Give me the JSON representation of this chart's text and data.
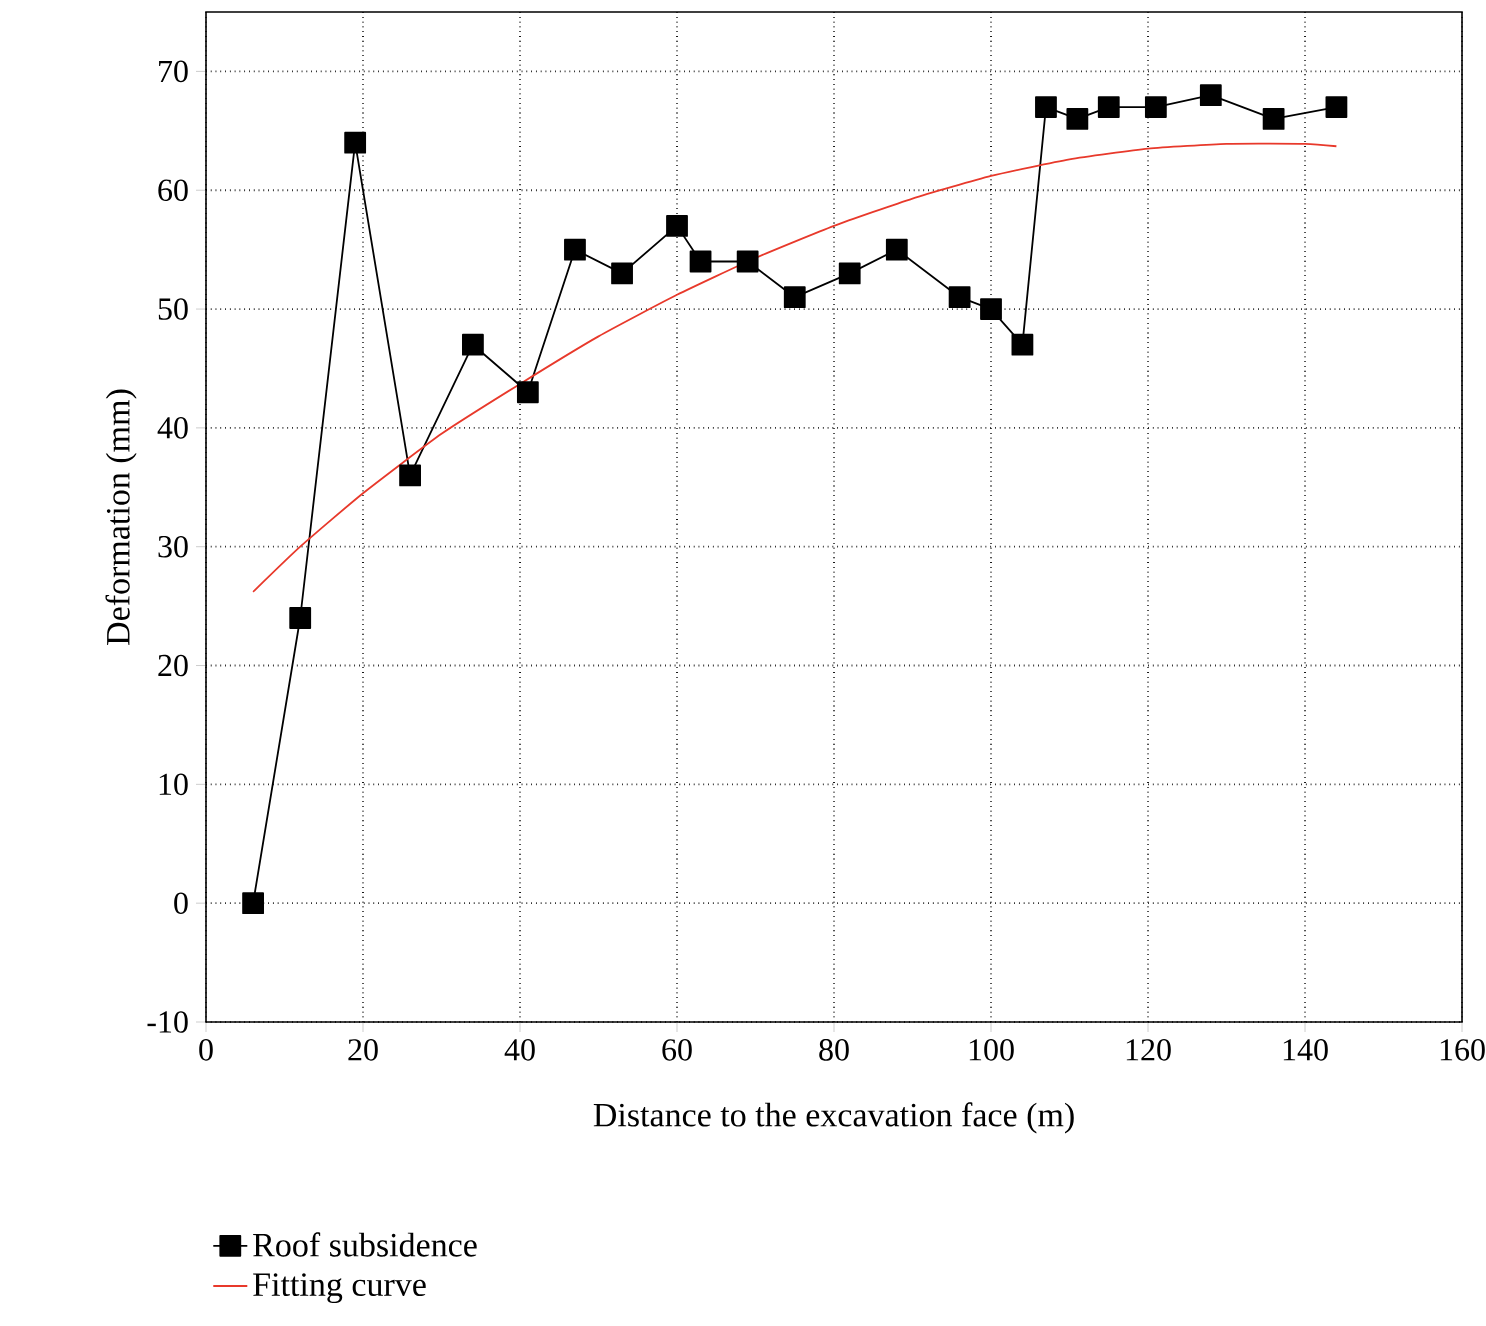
{
  "chart_data": {
    "type": "line",
    "xlabel": "Distance to the excavation face (m)",
    "ylabel": "Deformation (mm)",
    "xlim": [
      0,
      160
    ],
    "xticks": [
      0,
      20,
      40,
      60,
      80,
      100,
      120,
      140,
      160
    ],
    "ylim": [
      -10,
      75
    ],
    "yticks": [
      -10,
      0,
      10,
      20,
      30,
      40,
      50,
      60,
      70
    ],
    "grid": true,
    "legend": "bottom left",
    "series": [
      {
        "name": "Roof subsidence",
        "color": "#000000",
        "marker": "square",
        "x": [
          6,
          12,
          19,
          26,
          34,
          41,
          47,
          53,
          60,
          63,
          69,
          75,
          82,
          88,
          96,
          100,
          104,
          107,
          111,
          115,
          121,
          128,
          136,
          144
        ],
        "values": [
          0,
          24,
          64,
          36,
          47,
          43,
          55,
          53,
          57,
          54,
          54,
          51,
          53,
          55,
          51,
          50,
          47,
          67,
          66,
          67,
          67,
          68,
          66,
          67
        ]
      },
      {
        "name": "Fitting curve",
        "color": "#e8392b",
        "marker": "none",
        "x": [
          6,
          12,
          20,
          30,
          40,
          50,
          60,
          70,
          80,
          90,
          100,
          110,
          120,
          130,
          140,
          144
        ],
        "values": [
          26.2,
          30,
          34.5,
          39.5,
          43.7,
          47.7,
          51.2,
          54.3,
          57,
          59.3,
          61.2,
          62.6,
          63.5,
          63.9,
          63.9,
          63.7
        ]
      }
    ]
  }
}
